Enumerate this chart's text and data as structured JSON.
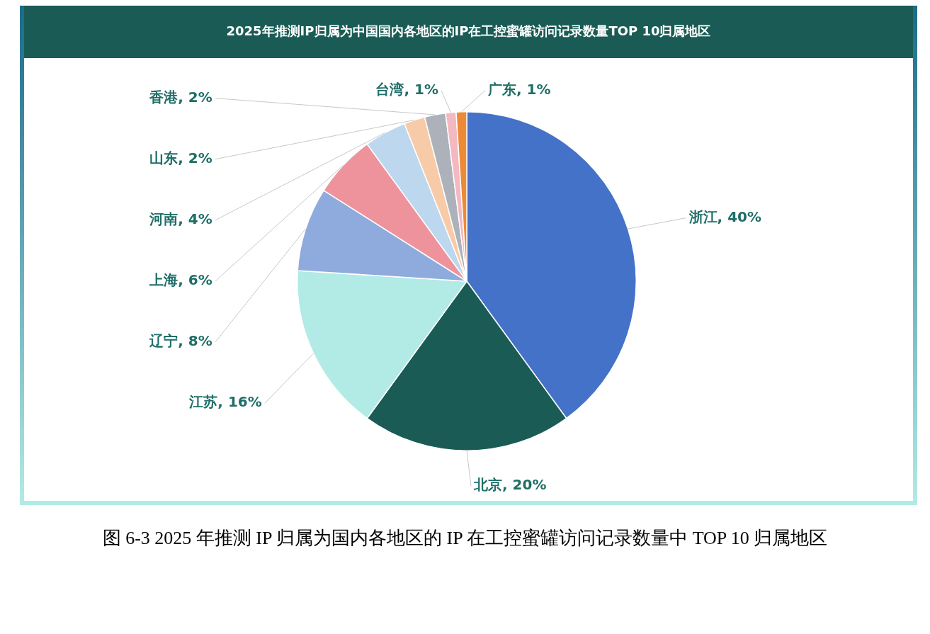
{
  "chart_data": {
    "type": "pie",
    "title": "2025年推测IP归属为中国国内各地区的IP在工控蜜罐访问记录数量TOP 10归属地区",
    "categories": [
      "浙江",
      "北京",
      "江苏",
      "辽宁",
      "上海",
      "河南",
      "山东",
      "香港",
      "台湾",
      "广东"
    ],
    "values": [
      40,
      20,
      16,
      8,
      6,
      4,
      2,
      2,
      1,
      1
    ],
    "colors": [
      "#4472c8",
      "#1a5c55",
      "#b2ebe6",
      "#8faadc",
      "#ee939c",
      "#bdd7ee",
      "#f8cba8",
      "#adb2ba",
      "#f4b8c0",
      "#ed8a35"
    ],
    "value_labels": [
      ", 40%",
      ", 20%",
      ", 16%",
      ", 8%",
      ", 6%",
      ", 4%",
      ", 2%",
      ", 2%",
      ", 1%",
      ", 1%"
    ],
    "annotations": [
      "图 6-3 2025 年推测 IP 归属为国内各地区的 IP 在工控蜜罐访问记录数量中 TOP 10 归属地区"
    ]
  }
}
